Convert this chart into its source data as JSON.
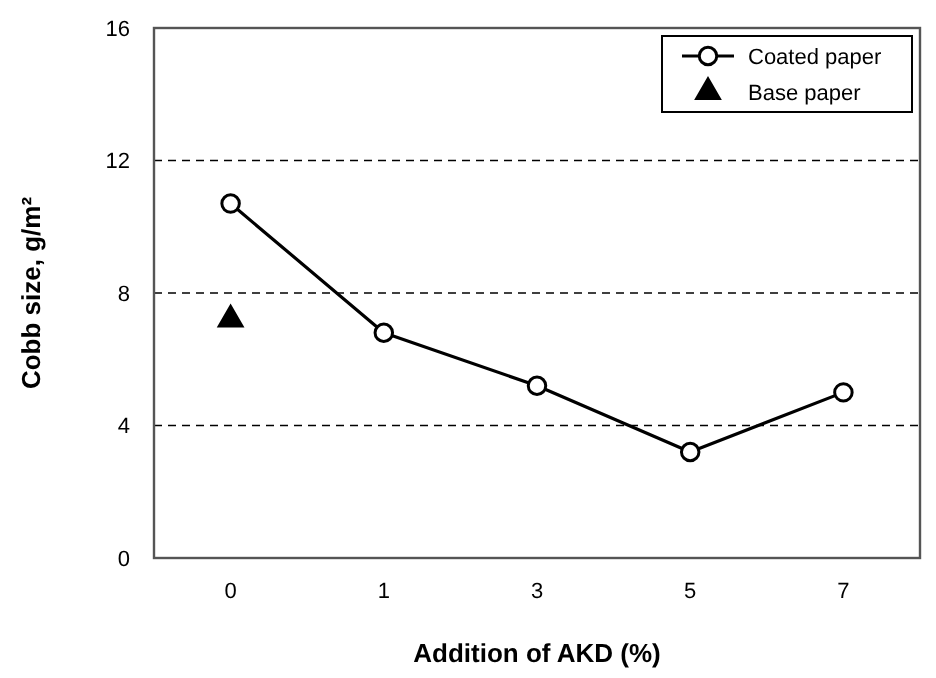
{
  "chart_data": {
    "type": "line",
    "xlabel": "Addition of AKD (%)",
    "ylabel": "Cobb size, g/m²",
    "categories": [
      "0",
      "1",
      "3",
      "5",
      "7"
    ],
    "series": [
      {
        "name": "Coated paper",
        "color": "#000000",
        "values": [
          10.7,
          6.8,
          5.2,
          3.2,
          5.0
        ],
        "marker": "circle"
      },
      {
        "name": "Base paper",
        "type": "scatter",
        "color": "#000000",
        "x": [
          "0"
        ],
        "values": [
          7.2
        ],
        "marker": "triangle"
      }
    ],
    "ylim": [
      0,
      16
    ],
    "yticks": [
      0,
      4,
      8,
      12,
      16
    ],
    "grid": "y",
    "legend": "top right"
  }
}
